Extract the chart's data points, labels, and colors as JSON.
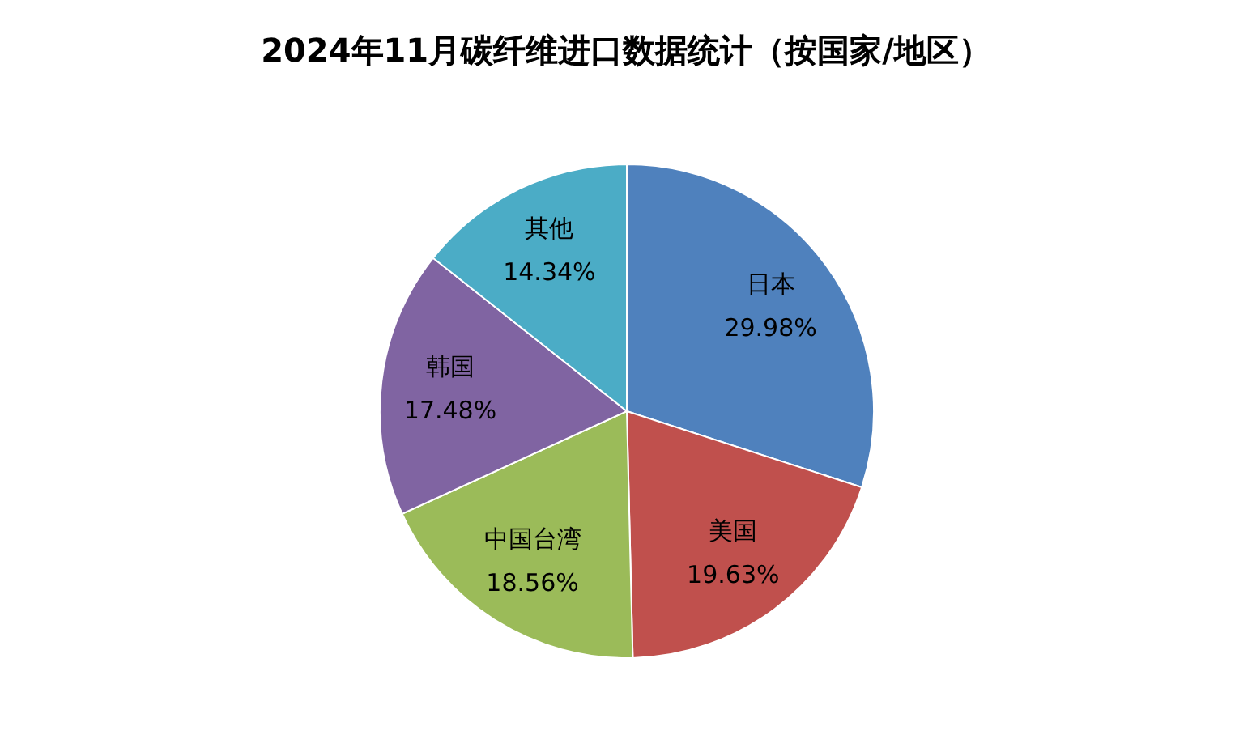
{
  "chart_data": {
    "type": "pie",
    "title": "2024年11月碳纤维进口数据统计（按国家/地区）",
    "categories": [
      "日本",
      "美国",
      "中国台湾",
      "韩国",
      "其他"
    ],
    "values": [
      29.98,
      19.63,
      18.56,
      17.48,
      14.34
    ],
    "colors": [
      "#4f81bd",
      "#c0504d",
      "#9bbb59",
      "#8064a2",
      "#4bacc6"
    ],
    "value_labels": [
      "29.98%",
      "19.63%",
      "18.56%",
      "17.48%",
      "14.34%"
    ],
    "legend": false
  }
}
